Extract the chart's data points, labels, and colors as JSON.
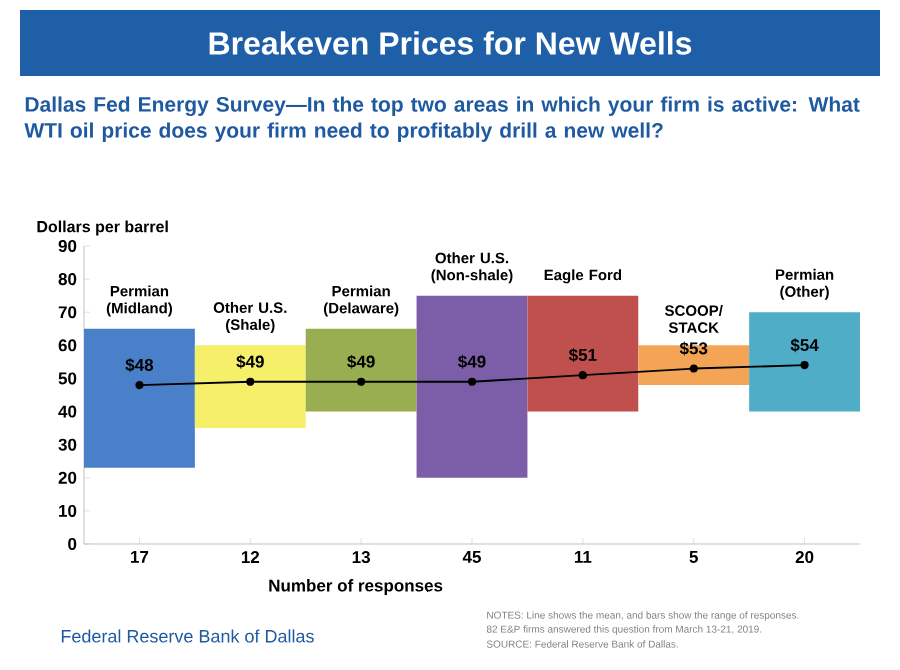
{
  "chart_data": {
    "type": "bar",
    "title": "Breakeven Prices for New Wells",
    "subtitle": "Dallas Fed Energy Survey—In the top two areas in which your firm is active: What WTI oil price does your firm need to profitably drill a new well?",
    "xlabel": "Number of responses",
    "ylabel": "Dollars per barrel",
    "categories": [
      "17",
      "12",
      "13",
      "45",
      "11",
      "5",
      "20"
    ],
    "series": [
      {
        "type": "bar",
        "base": [
          23,
          35,
          40,
          20,
          40,
          48,
          40
        ],
        "values": [
          42,
          25,
          25,
          55,
          35,
          12,
          30
        ],
        "colors": [
          "#4a7fc9",
          "#f5ef6a",
          "#98ae50",
          "#7b5ea7",
          "#c0504d",
          "#f4a455",
          "#4fadc8"
        ]
      },
      {
        "type": "line",
        "color": "#000000",
        "marker": "circle",
        "values": [
          48,
          49,
          49,
          49,
          51,
          53,
          54
        ],
        "value_labels": [
          "$48",
          "$49",
          "$49",
          "$49",
          "$51",
          "$53",
          "$54"
        ]
      }
    ],
    "ylim": [
      0,
      90
    ],
    "yticks": [
      0,
      10,
      20,
      30,
      40,
      50,
      60,
      70,
      80,
      90
    ],
    "annotations": [
      {
        "text": "Permian (Midland)",
        "x": "17",
        "y": 65
      },
      {
        "text": "Other U.S. (Shale)",
        "x": "12",
        "y": 60
      },
      {
        "text": "Permian (Delaware)",
        "x": "13",
        "y": 65
      },
      {
        "text": "Other U.S. (Non-shale)",
        "x": "45",
        "y": 75
      },
      {
        "text": "Eagle Ford",
        "x": "11",
        "y": 75
      },
      {
        "text": "SCOOP/ STACK",
        "x": "5",
        "y": 60
      },
      {
        "text": "Permian (Other)",
        "x": "20",
        "y": 70
      },
      "Federal Reserve Bank of Dallas",
      "NOTES: Line shows the mean, and bars show the range of responses.",
      "82 E&P firms answered this question from March 13-21, 2019.",
      "SOURCE: Federal Reserve Bank of Dallas."
    ]
  }
}
